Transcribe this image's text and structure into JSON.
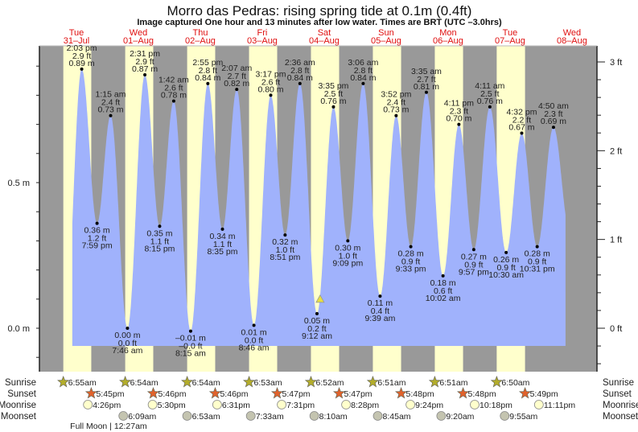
{
  "chart_data": {
    "type": "area",
    "title": "Morro das Pedras: rising  spring tide at 0.1m (0.4ft)",
    "subtitle": "Image captured One hour and 13 minutes after low water. Times are BRT (UTC –3.0hrs)",
    "days": [
      {
        "dow": "Tue",
        "date": "31–Jul"
      },
      {
        "dow": "Wed",
        "date": "01–Aug"
      },
      {
        "dow": "Thu",
        "date": "02–Aug"
      },
      {
        "dow": "Fri",
        "date": "03–Aug"
      },
      {
        "dow": "Sat",
        "date": "04–Aug"
      },
      {
        "dow": "Sun",
        "date": "05–Aug"
      },
      {
        "dow": "Mon",
        "date": "06–Aug"
      },
      {
        "dow": "Tue",
        "date": "07–Aug"
      },
      {
        "dow": "Wed",
        "date": "08–Aug"
      }
    ],
    "y_left": {
      "unit": "m",
      "ticks": [
        "0.0 m",
        "0.5 m"
      ],
      "tick_values": [
        0.0,
        0.5
      ]
    },
    "y_right": {
      "unit": "ft",
      "ticks": [
        "0 ft",
        "1 ft",
        "2 ft",
        "3 ft"
      ],
      "tick_values": [
        0,
        1,
        2,
        3
      ]
    },
    "extremes": [
      {
        "day": 0,
        "time": "2:03 pm",
        "m": 0.89,
        "ft": "2.9",
        "type": "high"
      },
      {
        "day": 0,
        "time": "7:59 pm",
        "m": 0.36,
        "ft": "1.2",
        "type": "low"
      },
      {
        "day": 1,
        "time": "1:15 am",
        "m": 0.73,
        "ft": "2.4",
        "type": "high"
      },
      {
        "day": 1,
        "time": "7:46 am",
        "m": 0.0,
        "ft": "0.0",
        "type": "low"
      },
      {
        "day": 1,
        "time": "2:31 pm",
        "m": 0.87,
        "ft": "2.9",
        "type": "high"
      },
      {
        "day": 1,
        "time": "8:15 pm",
        "m": 0.35,
        "ft": "1.1",
        "type": "low"
      },
      {
        "day": 2,
        "time": "1:42 am",
        "m": 0.78,
        "ft": "2.6",
        "type": "high"
      },
      {
        "day": 2,
        "time": "8:15 am",
        "m": -0.01,
        "ft": "–0.0",
        "type": "low"
      },
      {
        "day": 2,
        "time": "2:55 pm",
        "m": 0.84,
        "ft": "2.8",
        "type": "high"
      },
      {
        "day": 2,
        "time": "8:35 pm",
        "m": 0.34,
        "ft": "1.1",
        "type": "low"
      },
      {
        "day": 3,
        "time": "2:07 am",
        "m": 0.82,
        "ft": "2.7",
        "type": "high"
      },
      {
        "day": 3,
        "time": "8:46 am",
        "m": 0.01,
        "ft": "0.0",
        "type": "low"
      },
      {
        "day": 3,
        "time": "3:17 pm",
        "m": 0.8,
        "ft": "2.6",
        "type": "high"
      },
      {
        "day": 3,
        "time": "8:51 pm",
        "m": 0.32,
        "ft": "1.0",
        "type": "low"
      },
      {
        "day": 4,
        "time": "2:36 am",
        "m": 0.84,
        "ft": "2.8",
        "type": "high"
      },
      {
        "day": 4,
        "time": "9:12 am",
        "m": 0.05,
        "ft": "0.2",
        "type": "low"
      },
      {
        "day": 4,
        "time": "3:35 pm",
        "m": 0.76,
        "ft": "2.5",
        "type": "high"
      },
      {
        "day": 4,
        "time": "9:09 pm",
        "m": 0.3,
        "ft": "1.0",
        "type": "low"
      },
      {
        "day": 5,
        "time": "3:06 am",
        "m": 0.84,
        "ft": "2.8",
        "type": "high"
      },
      {
        "day": 5,
        "time": "9:39 am",
        "m": 0.11,
        "ft": "0.4",
        "type": "low"
      },
      {
        "day": 5,
        "time": "3:52 pm",
        "m": 0.73,
        "ft": "2.4",
        "type": "high"
      },
      {
        "day": 5,
        "time": "9:33 pm",
        "m": 0.28,
        "ft": "0.9",
        "type": "low"
      },
      {
        "day": 6,
        "time": "3:35 am",
        "m": 0.81,
        "ft": "2.7",
        "type": "high"
      },
      {
        "day": 6,
        "time": "10:02 am",
        "m": 0.18,
        "ft": "0.6",
        "type": "low"
      },
      {
        "day": 6,
        "time": "4:11 pm",
        "m": 0.7,
        "ft": "2.3",
        "type": "high"
      },
      {
        "day": 6,
        "time": "9:57 pm",
        "m": 0.27,
        "ft": "0.9",
        "type": "low"
      },
      {
        "day": 7,
        "time": "4:11 am",
        "m": 0.76,
        "ft": "2.5",
        "type": "high"
      },
      {
        "day": 7,
        "time": "10:30 am",
        "m": 0.26,
        "ft": "0.9",
        "type": "low"
      },
      {
        "day": 7,
        "time": "4:32 pm",
        "m": 0.67,
        "ft": "2.2",
        "type": "high"
      },
      {
        "day": 7,
        "time": "10:31 pm",
        "m": 0.28,
        "ft": "0.9",
        "type": "low"
      },
      {
        "day": 8,
        "time": "4:50 am",
        "m": 0.69,
        "ft": "2.3",
        "type": "high"
      }
    ],
    "current": {
      "day": 4,
      "time": "10:25 am",
      "m": 0.1
    },
    "rows": {
      "sunrise": {
        "label": "Sunrise",
        "events": [
          {
            "day": 0,
            "time": "6:55am"
          },
          {
            "day": 1,
            "time": "6:54am"
          },
          {
            "day": 2,
            "time": "6:54am"
          },
          {
            "day": 3,
            "time": "6:53am"
          },
          {
            "day": 4,
            "time": "6:52am"
          },
          {
            "day": 5,
            "time": "6:51am"
          },
          {
            "day": 6,
            "time": "6:51am"
          },
          {
            "day": 7,
            "time": "6:50am"
          }
        ]
      },
      "sunset": {
        "label": "Sunset",
        "events": [
          {
            "day": 0,
            "time": "5:45pm"
          },
          {
            "day": 1,
            "time": "5:46pm"
          },
          {
            "day": 2,
            "time": "5:46pm"
          },
          {
            "day": 3,
            "time": "5:47pm"
          },
          {
            "day": 4,
            "time": "5:47pm"
          },
          {
            "day": 5,
            "time": "5:48pm"
          },
          {
            "day": 6,
            "time": "5:48pm"
          },
          {
            "day": 7,
            "time": "5:49pm"
          }
        ]
      },
      "moonrise": {
        "label": "Moonrise",
        "events": [
          {
            "day": 0,
            "time": "4:26pm"
          },
          {
            "day": 1,
            "time": "5:30pm"
          },
          {
            "day": 2,
            "time": "6:31pm"
          },
          {
            "day": 3,
            "time": "7:31pm"
          },
          {
            "day": 4,
            "time": "8:28pm"
          },
          {
            "day": 5,
            "time": "9:24pm"
          },
          {
            "day": 6,
            "time": "10:18pm"
          },
          {
            "day": 7,
            "time": "11:11pm"
          }
        ]
      },
      "moonset": {
        "label": "Moonset",
        "events": [
          {
            "day": 1,
            "time": "6:09am"
          },
          {
            "day": 2,
            "time": "6:53am"
          },
          {
            "day": 3,
            "time": "7:33am"
          },
          {
            "day": 4,
            "time": "8:10am"
          },
          {
            "day": 5,
            "time": "8:45am"
          },
          {
            "day": 6,
            "time": "9:20am"
          },
          {
            "day": 7,
            "time": "9:55am"
          }
        ]
      }
    },
    "moon_phase": {
      "day": 1,
      "time": "12:27am",
      "label": "Full Moon | 12:27am"
    },
    "colors": {
      "day": "#ffffcc",
      "night": "#999999",
      "water": "#a0b2fc",
      "day_label": "#e01010",
      "sunrise": "#b3ad2b",
      "sunset": "#e0622c",
      "moonrise": "#ffffcc",
      "moonset": "#c4c4b0"
    }
  }
}
